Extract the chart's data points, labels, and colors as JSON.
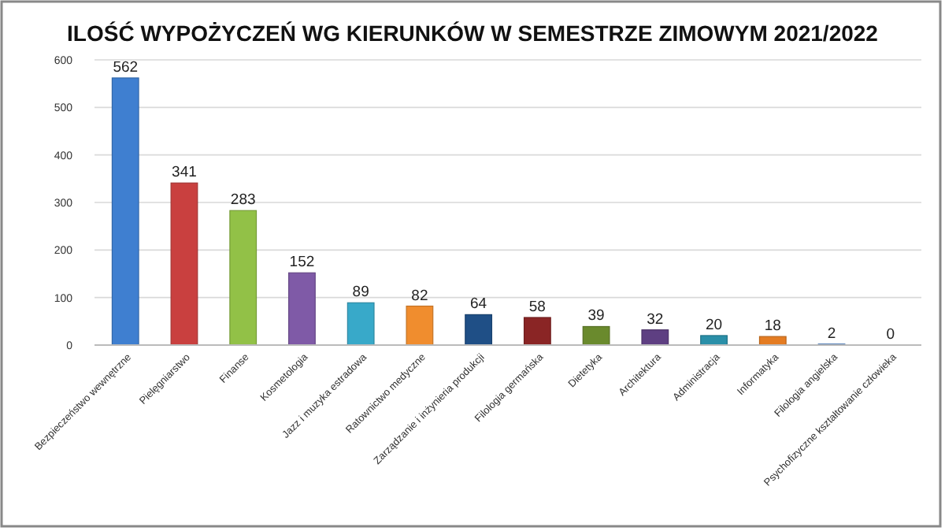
{
  "chart_data": {
    "type": "bar",
    "title": "ILOŚĆ WYPOŻYCZEŃ WG KIERUNKÓW W SEMESTRZE ZIMOWYM 2021/2022",
    "categories": [
      "Bezpieczeństwo wewnętrzne",
      "Pielęgniarstwo",
      "Finanse",
      "Kosmetologia",
      "Jazz i muzyka estradowa",
      "Ratownictwo medyczne",
      "Zarządzanie i inżynieria produkcji",
      "Filologia germańska",
      "Dietetyka",
      "Architektura",
      "Administracja",
      "Informatyka",
      "Filologia angielska",
      "Psychofizyczne kształtowanie człowieka"
    ],
    "values": [
      562,
      341,
      283,
      152,
      89,
      82,
      64,
      58,
      39,
      32,
      20,
      18,
      2,
      0
    ],
    "colors": [
      "#3f7fd0",
      "#c9403f",
      "#92c147",
      "#7f5aa7",
      "#38a9c9",
      "#f08d2e",
      "#1f4f86",
      "#8a2525",
      "#6a8a2d",
      "#5e3f82",
      "#2a8fa8",
      "#e47c22",
      "#3f7fd0",
      "#c9403f"
    ],
    "ylim": [
      0,
      600
    ],
    "yticks": [
      0,
      100,
      200,
      300,
      400,
      500,
      600
    ],
    "grid": "y",
    "data_labels": true
  }
}
